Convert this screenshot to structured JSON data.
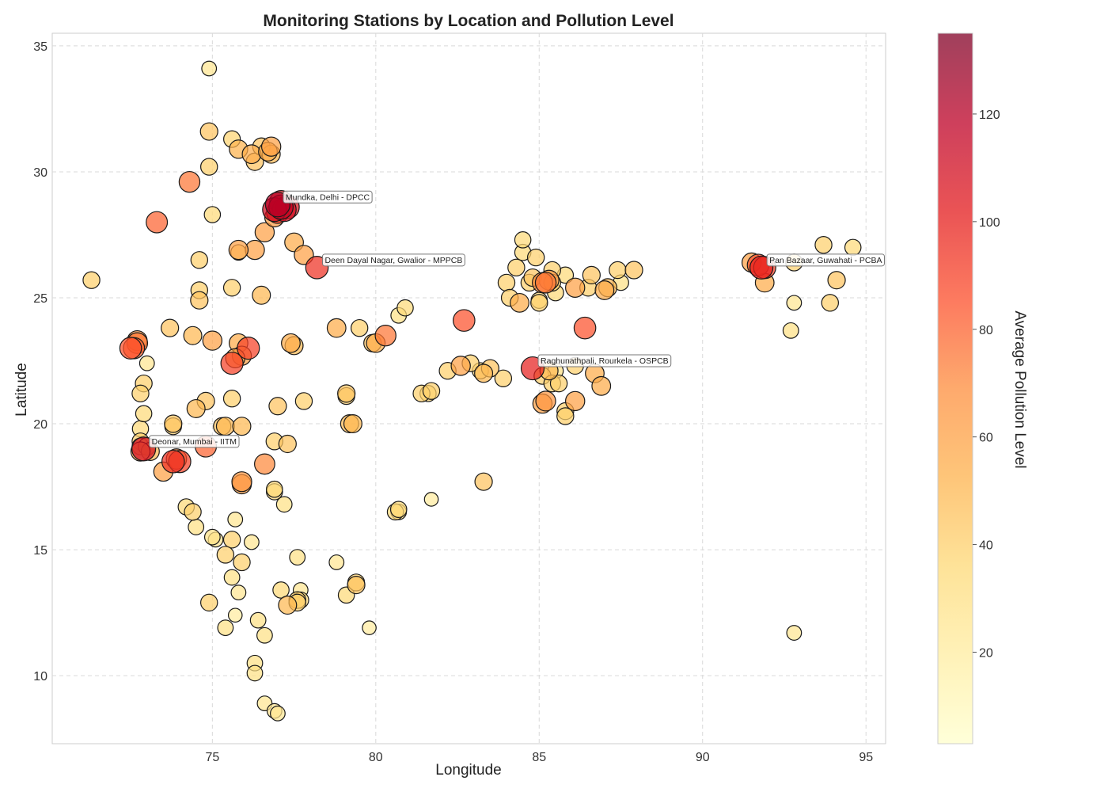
{
  "chart_data": {
    "type": "scatter",
    "title": "Monitoring Stations by Location and Pollution Level",
    "xlabel": "Longitude",
    "ylabel": "Latitude",
    "xlim": [
      70.1,
      95.6
    ],
    "ylim": [
      7.3,
      35.5
    ],
    "xticks": [
      75,
      80,
      85,
      90,
      95
    ],
    "yticks": [
      10,
      15,
      20,
      25,
      30,
      35
    ],
    "grid": true,
    "colorbar": {
      "label": "Average Pollution Level",
      "range": [
        3,
        135
      ],
      "ticks": [
        20,
        40,
        60,
        80,
        100,
        120
      ],
      "colormap": [
        "#ffffcc",
        "#ffeda0",
        "#fed976",
        "#feb24c",
        "#fd8d3c",
        "#fc4e2a",
        "#e31a1c",
        "#bd0026",
        "#800026"
      ]
    },
    "points": [
      [
        74.9,
        34.1,
        25
      ],
      [
        71.3,
        25.7,
        40
      ],
      [
        73.3,
        28.0,
        80
      ],
      [
        74.3,
        29.6,
        75
      ],
      [
        74.9,
        31.6,
        45
      ],
      [
        74.9,
        30.2,
        40
      ],
      [
        75.0,
        28.3,
        35
      ],
      [
        75.6,
        31.3,
        38
      ],
      [
        75.8,
        30.9,
        52
      ],
      [
        76.2,
        30.7,
        55
      ],
      [
        76.3,
        30.4,
        45
      ],
      [
        76.5,
        31.0,
        45
      ],
      [
        76.7,
        30.8,
        55
      ],
      [
        76.8,
        30.7,
        50
      ],
      [
        76.8,
        31.0,
        60
      ],
      [
        77.0,
        28.7,
        120
      ],
      [
        77.1,
        28.6,
        115
      ],
      [
        77.2,
        28.5,
        110
      ],
      [
        77.3,
        28.6,
        105
      ],
      [
        77.1,
        28.8,
        100
      ],
      [
        76.9,
        28.5,
        110
      ],
      [
        77.0,
        28.4,
        95
      ],
      [
        76.6,
        27.6,
        60
      ],
      [
        76.9,
        28.2,
        62
      ],
      [
        77.5,
        27.2,
        55
      ],
      [
        77.8,
        26.7,
        60
      ],
      [
        78.2,
        26.2,
        95
      ],
      [
        76.3,
        26.9,
        60
      ],
      [
        75.8,
        26.9,
        60
      ],
      [
        75.8,
        26.8,
        30
      ],
      [
        74.6,
        26.5,
        40
      ],
      [
        74.6,
        25.3,
        40
      ],
      [
        74.6,
        24.9,
        45
      ],
      [
        75.6,
        25.4,
        40
      ],
      [
        76.5,
        25.1,
        50
      ],
      [
        72.5,
        23.0,
        85
      ],
      [
        72.6,
        23.0,
        80
      ],
      [
        72.7,
        23.2,
        75
      ],
      [
        72.7,
        23.3,
        65
      ],
      [
        73.7,
        23.8,
        45
      ],
      [
        74.4,
        23.5,
        50
      ],
      [
        75.0,
        23.3,
        60
      ],
      [
        75.8,
        23.2,
        55
      ],
      [
        75.9,
        22.7,
        60
      ],
      [
        76.1,
        23.0,
        90
      ],
      [
        75.6,
        22.4,
        90
      ],
      [
        75.7,
        22.6,
        60
      ],
      [
        77.4,
        23.2,
        55
      ],
      [
        77.5,
        23.1,
        50
      ],
      [
        73.0,
        22.4,
        25
      ],
      [
        72.9,
        21.6,
        40
      ],
      [
        72.8,
        21.2,
        40
      ],
      [
        74.8,
        20.9,
        45
      ],
      [
        74.5,
        20.6,
        50
      ],
      [
        75.6,
        21.0,
        40
      ],
      [
        77.0,
        20.7,
        45
      ],
      [
        77.8,
        20.9,
        40
      ],
      [
        79.1,
        21.1,
        40
      ],
      [
        79.1,
        21.2,
        45
      ],
      [
        78.8,
        23.8,
        55
      ],
      [
        79.5,
        23.8,
        40
      ],
      [
        79.9,
        23.2,
        45
      ],
      [
        80.0,
        23.2,
        55
      ],
      [
        80.3,
        23.5,
        75
      ],
      [
        80.7,
        24.3,
        30
      ],
      [
        80.9,
        24.6,
        35
      ],
      [
        82.7,
        24.1,
        85
      ],
      [
        72.8,
        19.8,
        35
      ],
      [
        72.9,
        20.4,
        35
      ],
      [
        72.8,
        19.3,
        40
      ],
      [
        72.9,
        19.0,
        110
      ],
      [
        72.8,
        18.9,
        60
      ],
      [
        73.0,
        19.1,
        45
      ],
      [
        72.8,
        19.1,
        40
      ],
      [
        73.1,
        18.9,
        50
      ],
      [
        73.8,
        20.0,
        45
      ],
      [
        73.8,
        19.9,
        40
      ],
      [
        73.8,
        18.5,
        95
      ],
      [
        74.0,
        18.5,
        90
      ],
      [
        73.9,
        18.6,
        70
      ],
      [
        73.5,
        18.1,
        60
      ],
      [
        74.8,
        19.1,
        80
      ],
      [
        75.3,
        19.9,
        45
      ],
      [
        75.4,
        19.9,
        50
      ],
      [
        75.9,
        19.9,
        50
      ],
      [
        75.9,
        17.7,
        65
      ],
      [
        75.9,
        17.6,
        60
      ],
      [
        76.6,
        18.4,
        70
      ],
      [
        76.9,
        19.3,
        40
      ],
      [
        77.3,
        19.2,
        45
      ],
      [
        76.9,
        17.3,
        35
      ],
      [
        76.9,
        17.4,
        35
      ],
      [
        77.2,
        16.8,
        30
      ],
      [
        74.2,
        16.7,
        35
      ],
      [
        74.4,
        16.5,
        40
      ],
      [
        74.5,
        15.9,
        30
      ],
      [
        75.0,
        15.5,
        30
      ],
      [
        75.1,
        15.4,
        25
      ],
      [
        75.7,
        16.2,
        25
      ],
      [
        75.6,
        15.4,
        40
      ],
      [
        76.2,
        15.3,
        25
      ],
      [
        75.4,
        14.8,
        40
      ],
      [
        75.9,
        14.5,
        40
      ],
      [
        75.6,
        13.9,
        30
      ],
      [
        75.8,
        13.3,
        25
      ],
      [
        74.9,
        12.9,
        40
      ],
      [
        75.7,
        12.4,
        20
      ],
      [
        76.4,
        12.2,
        30
      ],
      [
        75.4,
        11.9,
        30
      ],
      [
        76.6,
        11.6,
        30
      ],
      [
        76.3,
        10.5,
        30
      ],
      [
        76.3,
        10.1,
        30
      ],
      [
        76.6,
        8.9,
        25
      ],
      [
        76.9,
        8.6,
        25
      ],
      [
        77.0,
        8.5,
        25
      ],
      [
        77.1,
        13.4,
        35
      ],
      [
        77.3,
        12.8,
        50
      ],
      [
        77.6,
        13.0,
        40
      ],
      [
        77.6,
        12.9,
        40
      ],
      [
        77.7,
        13.0,
        35
      ],
      [
        77.7,
        13.4,
        25
      ],
      [
        77.6,
        14.7,
        30
      ],
      [
        78.8,
        14.5,
        25
      ],
      [
        79.1,
        13.2,
        35
      ],
      [
        79.4,
        13.6,
        45
      ],
      [
        79.4,
        13.7,
        40
      ],
      [
        79.8,
        11.9,
        20
      ],
      [
        79.2,
        20.0,
        50
      ],
      [
        79.3,
        20.0,
        50
      ],
      [
        80.6,
        16.5,
        35
      ],
      [
        80.7,
        16.5,
        30
      ],
      [
        80.7,
        16.6,
        35
      ],
      [
        81.7,
        17.0,
        20
      ],
      [
        83.3,
        17.7,
        45
      ],
      [
        81.4,
        21.2,
        40
      ],
      [
        81.6,
        21.2,
        35
      ],
      [
        81.7,
        21.3,
        40
      ],
      [
        82.2,
        22.1,
        40
      ],
      [
        82.6,
        22.3,
        60
      ],
      [
        82.9,
        22.4,
        40
      ],
      [
        83.2,
        22.1,
        35
      ],
      [
        83.3,
        22.0,
        50
      ],
      [
        83.5,
        22.2,
        45
      ],
      [
        83.9,
        21.8,
        40
      ],
      [
        84.8,
        22.2,
        100
      ],
      [
        85.1,
        21.9,
        40
      ],
      [
        85.3,
        22.1,
        50
      ],
      [
        85.5,
        22.1,
        30
      ],
      [
        85.4,
        21.6,
        40
      ],
      [
        85.6,
        21.6,
        40
      ],
      [
        86.1,
        22.3,
        40
      ],
      [
        86.7,
        22.0,
        55
      ],
      [
        86.9,
        21.5,
        55
      ],
      [
        85.1,
        20.8,
        60
      ],
      [
        85.2,
        20.9,
        65
      ],
      [
        85.8,
        20.5,
        40
      ],
      [
        85.8,
        20.3,
        40
      ],
      [
        86.1,
        20.9,
        60
      ],
      [
        84.0,
        25.6,
        40
      ],
      [
        84.1,
        25.0,
        40
      ],
      [
        84.4,
        24.8,
        55
      ],
      [
        84.3,
        26.2,
        40
      ],
      [
        84.5,
        26.8,
        35
      ],
      [
        84.5,
        27.3,
        35
      ],
      [
        84.7,
        25.6,
        40
      ],
      [
        84.8,
        25.8,
        45
      ],
      [
        84.9,
        26.6,
        40
      ],
      [
        85.0,
        24.8,
        40
      ],
      [
        85.0,
        24.9,
        35
      ],
      [
        85.1,
        25.6,
        70
      ],
      [
        85.2,
        25.6,
        75
      ],
      [
        85.3,
        25.7,
        65
      ],
      [
        85.4,
        26.1,
        40
      ],
      [
        85.5,
        25.2,
        35
      ],
      [
        85.8,
        25.9,
        35
      ],
      [
        86.1,
        25.4,
        60
      ],
      [
        86.5,
        25.4,
        40
      ],
      [
        86.6,
        25.9,
        45
      ],
      [
        86.4,
        23.8,
        85
      ],
      [
        87.0,
        25.3,
        55
      ],
      [
        87.1,
        25.4,
        50
      ],
      [
        87.4,
        26.1,
        40
      ],
      [
        87.5,
        25.6,
        30
      ],
      [
        87.9,
        26.1,
        45
      ],
      [
        85.4,
        25.6,
        40
      ],
      [
        91.5,
        26.4,
        60
      ],
      [
        91.8,
        26.2,
        100
      ],
      [
        91.9,
        26.2,
        90
      ],
      [
        91.7,
        26.3,
        85
      ],
      [
        91.9,
        25.6,
        55
      ],
      [
        92.8,
        26.4,
        40
      ],
      [
        93.7,
        27.1,
        40
      ],
      [
        94.6,
        27.0,
        35
      ],
      [
        94.1,
        25.7,
        45
      ],
      [
        93.9,
        24.8,
        40
      ],
      [
        92.8,
        24.8,
        25
      ],
      [
        92.7,
        23.7,
        30
      ],
      [
        92.8,
        11.7,
        25
      ]
    ],
    "annotations": [
      {
        "label": "Mundka, Delhi - DPCC",
        "x": 77.0,
        "y": 28.7
      },
      {
        "label": "Deen Dayal Nagar, Gwalior - MPPCB",
        "x": 78.2,
        "y": 26.2
      },
      {
        "label": "Pan Bazaar, Guwahati - PCBA",
        "x": 91.8,
        "y": 26.2
      },
      {
        "label": "Raghunathpali, Rourkela - OSPCB",
        "x": 84.8,
        "y": 22.2
      },
      {
        "label": "Deonar, Mumbai - IITM",
        "x": 72.9,
        "y": 19.0
      }
    ]
  }
}
